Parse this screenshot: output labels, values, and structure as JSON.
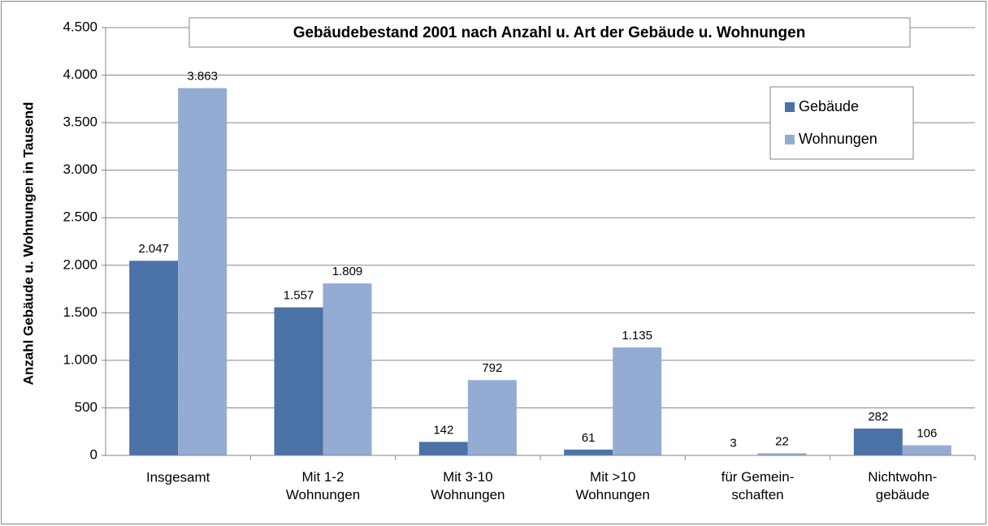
{
  "chart_data": {
    "type": "bar",
    "title": "Gebäudebestand 2001 nach Anzahl u. Art der Gebäude u. Wohnungen",
    "y_label": "Anzahl Gebäude u. Wohnungen in Tausend",
    "categories": [
      "Insgesamt",
      "Mit 1-2\nWohnungen",
      "Mit 3-10\nWohnungen",
      "Mit >10\nWohnungen",
      "für Gemein-\nschaften",
      "Nichtwohn-\ngebäude"
    ],
    "series": [
      {
        "name": "Gebäude",
        "color": "#4a72a6",
        "values": [
          2047,
          1557,
          142,
          61,
          3,
          282
        ],
        "value_labels": [
          "2.047",
          "1.557",
          "142",
          "61",
          "3",
          "282"
        ]
      },
      {
        "name": "Wohnungen",
        "color": "#94abd3",
        "values": [
          3863,
          1809,
          792,
          1135,
          22,
          106
        ],
        "value_labels": [
          "3.863",
          "1.809",
          "792",
          "1.135",
          "22",
          "106"
        ]
      }
    ],
    "ylim": [
      0,
      4500
    ],
    "yticks": [
      0,
      500,
      {
        "value": 1000,
        "label": "1.000"
      },
      {
        "value": 1500,
        "label": "1.500"
      },
      {
        "value": 2000,
        "label": "2.000"
      },
      {
        "value": 2500,
        "label": "2.500"
      },
      {
        "value": 3000,
        "label": "3.000"
      },
      {
        "value": 3500,
        "label": "3.500"
      },
      {
        "value": 4000,
        "label": "4.000"
      },
      {
        "value": 4500,
        "label": "4.500"
      }
    ],
    "grid": true,
    "legend": "upper right"
  }
}
